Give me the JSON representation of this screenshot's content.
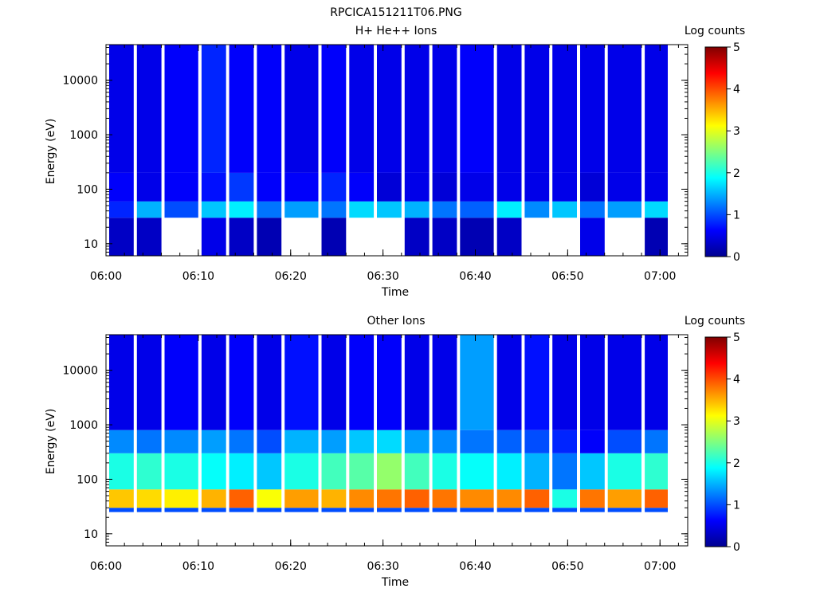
{
  "figure_title": "RPCICA151211T06.PNG",
  "colorbar": {
    "label": "Log counts",
    "ticks": [
      "0",
      "1",
      "2",
      "3",
      "4",
      "5"
    ]
  },
  "chart_data": [
    {
      "type": "heatmap",
      "title": "H+ He++ Ions",
      "xlabel": "Time",
      "ylabel": "Energy (eV)",
      "x_ticks": [
        "06:00",
        "06:10",
        "06:20",
        "06:30",
        "06:40",
        "06:50",
        "07:00"
      ],
      "x_range": [
        "06:00",
        "07:03"
      ],
      "y_ticks": [
        "10",
        "100",
        "1000",
        "10000"
      ],
      "y_scale": "log",
      "y_range": [
        6,
        45000
      ],
      "color_range": [
        0,
        5
      ],
      "colorbar_label": "Log counts",
      "time_bins": [
        "06:00",
        "06:03",
        "06:06",
        "06:10",
        "06:13",
        "06:16",
        "06:19",
        "06:23",
        "06:26",
        "06:29",
        "06:32",
        "06:35",
        "06:38",
        "06:42",
        "06:45",
        "06:48",
        "06:51",
        "06:54",
        "06:58"
      ],
      "energy_bands": [
        {
          "energy_range": [
            6,
            30
          ],
          "values": [
            0.3,
            0.3,
            null,
            0.5,
            0.3,
            0.2,
            null,
            0.2,
            null,
            null,
            0.3,
            0.3,
            0.2,
            0.3,
            null,
            null,
            0.5,
            null,
            0.2
          ]
        },
        {
          "energy_range": [
            30,
            60
          ],
          "values": [
            0.8,
            1.5,
            1.0,
            1.6,
            1.8,
            1.2,
            1.4,
            1.2,
            1.7,
            1.6,
            1.5,
            1.2,
            1.1,
            1.8,
            1.3,
            1.6,
            1.2,
            1.4,
            1.7
          ]
        },
        {
          "energy_range": [
            60,
            200
          ],
          "values": [
            0.6,
            0.5,
            0.6,
            0.7,
            0.9,
            0.6,
            0.6,
            0.8,
            0.6,
            0.4,
            0.5,
            0.4,
            0.5,
            0.5,
            0.5,
            0.5,
            0.4,
            0.5,
            0.5
          ]
        },
        {
          "energy_range": [
            200,
            45000
          ],
          "values": [
            0.5,
            0.5,
            0.6,
            0.8,
            0.6,
            0.6,
            0.5,
            0.6,
            0.5,
            0.5,
            0.5,
            0.5,
            0.6,
            0.5,
            0.5,
            0.5,
            0.5,
            0.5,
            0.5
          ]
        }
      ]
    },
    {
      "type": "heatmap",
      "title": "Other Ions",
      "xlabel": "Time",
      "ylabel": "Energy (eV)",
      "x_ticks": [
        "06:00",
        "06:10",
        "06:20",
        "06:30",
        "06:40",
        "06:50",
        "07:00"
      ],
      "x_range": [
        "06:00",
        "07:03"
      ],
      "y_ticks": [
        "10",
        "100",
        "1000",
        "10000"
      ],
      "y_scale": "log",
      "y_range": [
        6,
        45000
      ],
      "color_range": [
        0,
        5
      ],
      "colorbar_label": "Log counts",
      "time_bins": [
        "06:00",
        "06:03",
        "06:06",
        "06:10",
        "06:13",
        "06:16",
        "06:19",
        "06:23",
        "06:26",
        "06:29",
        "06:32",
        "06:35",
        "06:38",
        "06:42",
        "06:45",
        "06:48",
        "06:51",
        "06:54",
        "06:58"
      ],
      "energy_bands": [
        {
          "energy_range": [
            25,
            30
          ],
          "values": [
            1.0,
            1.0,
            1.0,
            1.0,
            1.0,
            1.0,
            1.0,
            1.0,
            1.0,
            1.0,
            1.0,
            1.0,
            1.0,
            1.0,
            1.0,
            1.0,
            1.0,
            1.0,
            1.0
          ]
        },
        {
          "energy_range": [
            30,
            65
          ],
          "values": [
            3.4,
            3.3,
            3.2,
            3.5,
            3.9,
            3.1,
            3.6,
            3.5,
            3.7,
            3.8,
            3.9,
            3.8,
            3.7,
            3.7,
            3.9,
            2.0,
            3.8,
            3.6,
            3.9
          ]
        },
        {
          "energy_range": [
            65,
            300
          ],
          "values": [
            2.0,
            2.1,
            2.0,
            1.9,
            1.8,
            1.6,
            2.0,
            2.2,
            2.3,
            2.6,
            2.2,
            2.0,
            1.9,
            1.8,
            1.5,
            1.2,
            1.6,
            2.0,
            2.1
          ]
        },
        {
          "energy_range": [
            300,
            800
          ],
          "values": [
            1.3,
            1.2,
            1.3,
            1.4,
            1.2,
            1.0,
            1.5,
            1.4,
            1.6,
            1.7,
            1.4,
            1.3,
            1.2,
            1.1,
            1.0,
            0.8,
            0.6,
            1.0,
            1.2
          ]
        },
        {
          "energy_range": [
            800,
            45000
          ],
          "values": [
            0.5,
            0.5,
            0.6,
            0.5,
            0.6,
            0.5,
            0.7,
            0.5,
            0.6,
            0.6,
            0.5,
            0.5,
            1.4,
            0.5,
            0.7,
            0.5,
            0.5,
            0.5,
            0.5
          ]
        }
      ]
    }
  ]
}
